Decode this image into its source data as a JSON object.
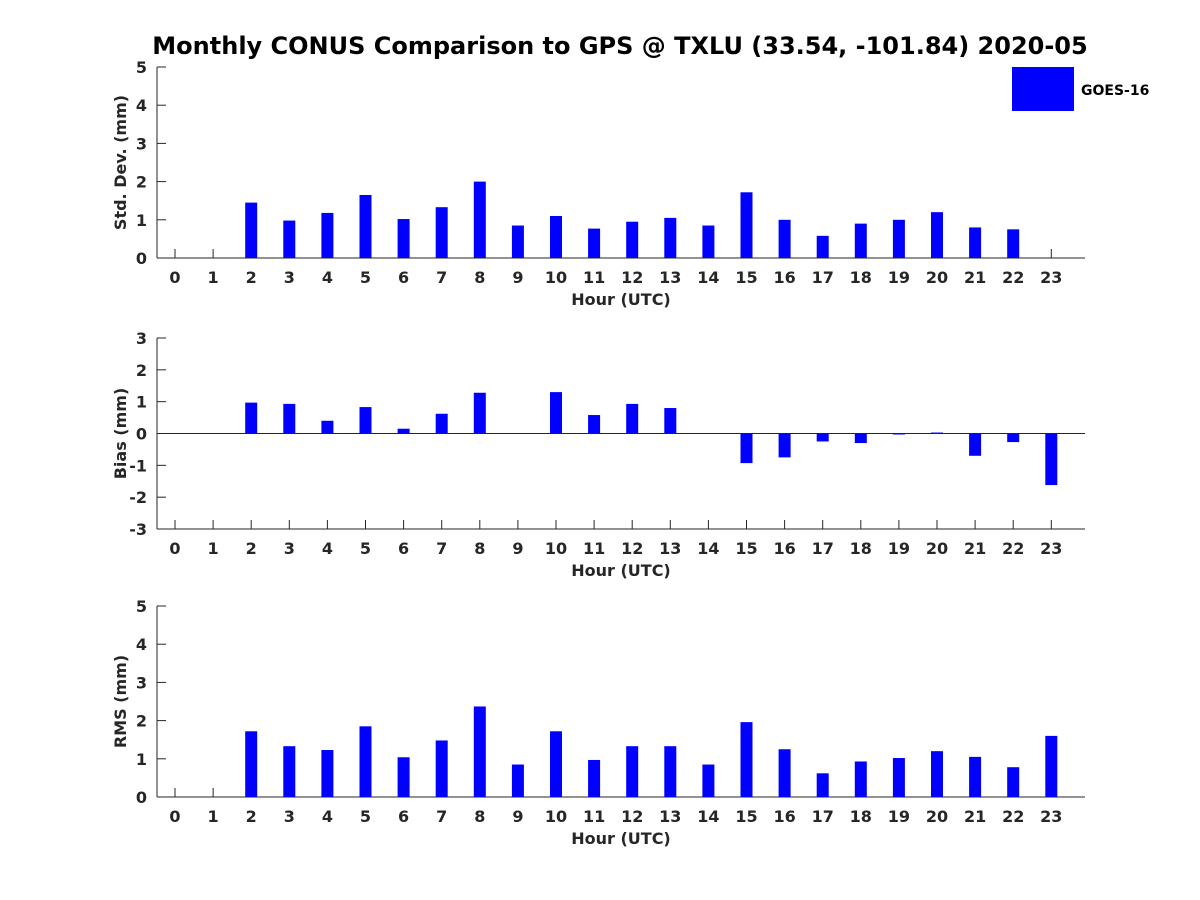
{
  "title": "Monthly CONUS Comparison to GPS @ TXLU (33.54, -101.84) 2020-05",
  "legend": {
    "label": "GOES-16",
    "color": "#0000ff"
  },
  "chart_data": [
    {
      "type": "bar",
      "id": "stddev",
      "series_name": "GOES-16",
      "color": "#0000ff",
      "categories": [
        "0",
        "1",
        "2",
        "3",
        "4",
        "5",
        "6",
        "7",
        "8",
        "9",
        "10",
        "11",
        "12",
        "13",
        "14",
        "15",
        "16",
        "17",
        "18",
        "19",
        "20",
        "21",
        "22",
        "23"
      ],
      "values": [
        null,
        null,
        1.45,
        0.98,
        1.18,
        1.65,
        1.02,
        1.33,
        2.0,
        0.85,
        1.1,
        0.77,
        0.95,
        1.05,
        0.85,
        1.72,
        1.0,
        0.58,
        0.9,
        1.0,
        1.2,
        0.8,
        0.75,
        null
      ],
      "xlabel": "Hour (UTC)",
      "ylabel": "Std. Dev. (mm)",
      "ylim": [
        0,
        5
      ],
      "yticks": [
        "0",
        "1",
        "2",
        "3",
        "4",
        "5"
      ],
      "grid": false
    },
    {
      "type": "bar",
      "id": "bias",
      "series_name": "GOES-16",
      "color": "#0000ff",
      "categories": [
        "0",
        "1",
        "2",
        "3",
        "4",
        "5",
        "6",
        "7",
        "8",
        "9",
        "10",
        "11",
        "12",
        "13",
        "14",
        "15",
        "16",
        "17",
        "18",
        "19",
        "20",
        "21",
        "22",
        "23"
      ],
      "values": [
        null,
        null,
        0.97,
        0.93,
        0.4,
        0.83,
        0.15,
        0.62,
        1.28,
        null,
        1.3,
        0.58,
        0.93,
        0.8,
        null,
        -0.93,
        -0.75,
        -0.25,
        -0.3,
        -0.02,
        0.03,
        -0.7,
        -0.27,
        -1.62
      ],
      "xlabel": "Hour (UTC)",
      "ylabel": "Bias (mm)",
      "ylim": [
        -3,
        3
      ],
      "yticks": [
        "-3",
        "-2",
        "-1",
        "0",
        "1",
        "2",
        "3"
      ],
      "grid": false
    },
    {
      "type": "bar",
      "id": "rms",
      "series_name": "GOES-16",
      "color": "#0000ff",
      "categories": [
        "0",
        "1",
        "2",
        "3",
        "4",
        "5",
        "6",
        "7",
        "8",
        "9",
        "10",
        "11",
        "12",
        "13",
        "14",
        "15",
        "16",
        "17",
        "18",
        "19",
        "20",
        "21",
        "22",
        "23"
      ],
      "values": [
        null,
        null,
        1.72,
        1.33,
        1.23,
        1.85,
        1.04,
        1.48,
        2.37,
        0.85,
        1.72,
        0.97,
        1.33,
        1.33,
        0.85,
        1.96,
        1.25,
        0.62,
        0.93,
        1.02,
        1.2,
        1.05,
        0.78,
        1.6
      ],
      "xlabel": "Hour (UTC)",
      "ylabel": "RMS (mm)",
      "ylim": [
        0,
        5
      ],
      "yticks": [
        "0",
        "1",
        "2",
        "3",
        "4",
        "5"
      ],
      "grid": false
    }
  ]
}
